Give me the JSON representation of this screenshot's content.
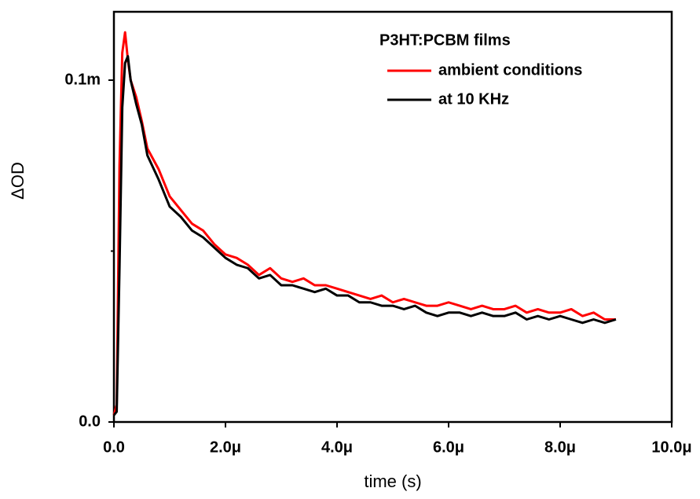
{
  "chart_data": {
    "type": "line",
    "x_label": "time (s)",
    "y_label": "ΔOD",
    "legend_title": "P3HT:PCBM films",
    "legend": "upper right",
    "x": [
      0.0,
      5e-08,
      1e-07,
      1.5e-07,
      2e-07,
      2.5e-07,
      3e-07,
      4e-07,
      5e-07,
      6e-07,
      8e-07,
      1e-06,
      1.2e-06,
      1.4e-06,
      1.6e-06,
      1.8e-06,
      2e-06,
      2.2e-06,
      2.4e-06,
      2.6e-06,
      2.8e-06,
      3e-06,
      3.2e-06,
      3.4e-06,
      3.6e-06,
      3.8e-06,
      4e-06,
      4.2e-06,
      4.4e-06,
      4.6e-06,
      4.8e-06,
      5e-06,
      5.2e-06,
      5.4e-06,
      5.6e-06,
      5.8e-06,
      6e-06,
      6.2e-06,
      6.4e-06,
      6.6e-06,
      6.8e-06,
      7e-06,
      7.2e-06,
      7.4e-06,
      7.6e-06,
      7.8e-06,
      8e-06,
      8.2e-06,
      8.4e-06,
      8.6e-06,
      8.8e-06,
      9e-06
    ],
    "series": [
      {
        "name": "ambient conditions",
        "color": "#ff0000",
        "values": [
          2e-06,
          5e-06,
          7.5e-05,
          0.000108,
          0.000114,
          0.000106,
          0.0001,
          9.5e-05,
          8.8e-05,
          8e-05,
          7.4e-05,
          6.6e-05,
          6.2e-05,
          5.8e-05,
          5.6e-05,
          5.2e-05,
          4.9e-05,
          4.8e-05,
          4.6e-05,
          4.3e-05,
          4.5e-05,
          4.2e-05,
          4.1e-05,
          4.2e-05,
          4e-05,
          4e-05,
          3.9e-05,
          3.8e-05,
          3.7e-05,
          3.6e-05,
          3.7e-05,
          3.5e-05,
          3.6e-05,
          3.5e-05,
          3.4e-05,
          3.4e-05,
          3.5e-05,
          3.4e-05,
          3.3e-05,
          3.4e-05,
          3.3e-05,
          3.3e-05,
          3.4e-05,
          3.2e-05,
          3.3e-05,
          3.2e-05,
          3.2e-05,
          3.3e-05,
          3.1e-05,
          3.2e-05,
          3e-05,
          3e-05
        ]
      },
      {
        "name": "at 10 KHz",
        "color": "#000000",
        "values": [
          2e-06,
          3e-06,
          4.5e-05,
          9.2e-05,
          0.000105,
          0.000107,
          0.0001,
          9.3e-05,
          8.7e-05,
          7.8e-05,
          7.1e-05,
          6.3e-05,
          6e-05,
          5.6e-05,
          5.4e-05,
          5.1e-05,
          4.8e-05,
          4.6e-05,
          4.5e-05,
          4.2e-05,
          4.3e-05,
          4e-05,
          4e-05,
          3.9e-05,
          3.8e-05,
          3.9e-05,
          3.7e-05,
          3.7e-05,
          3.5e-05,
          3.5e-05,
          3.4e-05,
          3.4e-05,
          3.3e-05,
          3.4e-05,
          3.2e-05,
          3.1e-05,
          3.2e-05,
          3.2e-05,
          3.1e-05,
          3.2e-05,
          3.1e-05,
          3.1e-05,
          3.2e-05,
          3e-05,
          3.1e-05,
          3e-05,
          3.1e-05,
          3e-05,
          2.9e-05,
          3e-05,
          2.9e-05,
          3e-05
        ]
      }
    ],
    "xlim": [
      0,
      1e-05
    ],
    "xticks": [
      {
        "value": 0,
        "label": "0.0"
      },
      {
        "value": 2e-06,
        "label": "2.0μ"
      },
      {
        "value": 4e-06,
        "label": "4.0μ"
      },
      {
        "value": 6e-06,
        "label": "6.0μ"
      },
      {
        "value": 8e-06,
        "label": "8.0μ"
      },
      {
        "value": 1e-05,
        "label": "10.0μ"
      }
    ],
    "ylim": [
      0,
      0.00012
    ],
    "yticks": [
      {
        "value": 0,
        "label": "0.0"
      },
      {
        "value": 0.0001,
        "label": "0.1m"
      }
    ],
    "yminorticks": [
      5e-05
    ]
  }
}
